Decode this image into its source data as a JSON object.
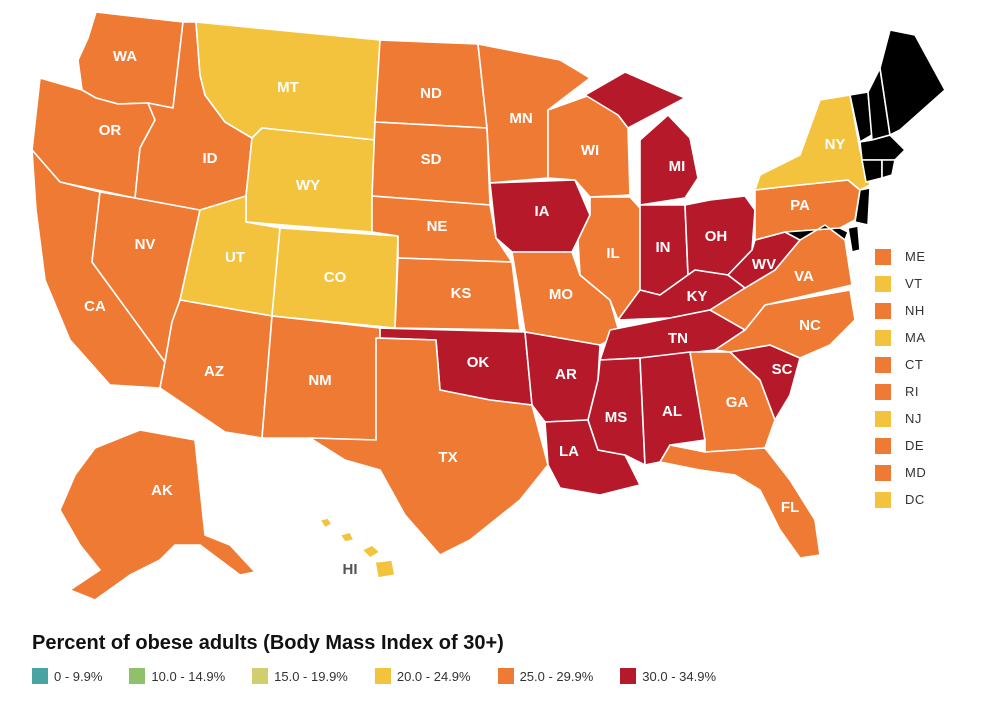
{
  "colors": {
    "bin_0": "#4aa3a3",
    "bin_10": "#8fc16b",
    "bin_15": "#cfcf6e",
    "bin_20": "#f3c33d",
    "bin_25": "#ee7a33",
    "bin_30": "#b5192a",
    "border": "#ffffff"
  },
  "legend": {
    "title": "Percent of obese adults (Body Mass Index of 30+)",
    "bins": [
      {
        "label": "0 - 9.9%",
        "color": "#4aa3a3"
      },
      {
        "label": "10.0 - 14.9%",
        "color": "#8fc16b"
      },
      {
        "label": "15.0 - 19.9%",
        "color": "#cfcf6e"
      },
      {
        "label": "20.0 - 24.9%",
        "color": "#f3c33d"
      },
      {
        "label": "25.0 - 29.9%",
        "color": "#ee7a33"
      },
      {
        "label": "30.0 - 34.9%",
        "color": "#b5192a"
      }
    ]
  },
  "small_states": [
    {
      "label": "ME",
      "bin": "25.0 - 29.9%"
    },
    {
      "label": "VT",
      "bin": "20.0 - 24.9%"
    },
    {
      "label": "NH",
      "bin": "25.0 - 29.9%"
    },
    {
      "label": "MA",
      "bin": "20.0 - 24.9%"
    },
    {
      "label": "CT",
      "bin": "25.0 - 29.9%"
    },
    {
      "label": "RI",
      "bin": "25.0 - 29.9%"
    },
    {
      "label": "NJ",
      "bin": "20.0 - 24.9%"
    },
    {
      "label": "DE",
      "bin": "25.0 - 29.9%"
    },
    {
      "label": "MD",
      "bin": "25.0 - 29.9%"
    },
    {
      "label": "DC",
      "bin": "20.0 - 24.9%"
    }
  ],
  "states": {
    "WA": {
      "label": "WA",
      "bin": "25.0 - 29.9%"
    },
    "OR": {
      "label": "OR",
      "bin": "25.0 - 29.9%"
    },
    "CA": {
      "label": "CA",
      "bin": "25.0 - 29.9%"
    },
    "NV": {
      "label": "NV",
      "bin": "25.0 - 29.9%"
    },
    "ID": {
      "label": "ID",
      "bin": "25.0 - 29.9%"
    },
    "MT": {
      "label": "MT",
      "bin": "20.0 - 24.9%"
    },
    "WY": {
      "label": "WY",
      "bin": "20.0 - 24.9%"
    },
    "UT": {
      "label": "UT",
      "bin": "20.0 - 24.9%"
    },
    "CO": {
      "label": "CO",
      "bin": "20.0 - 24.9%"
    },
    "AZ": {
      "label": "AZ",
      "bin": "25.0 - 29.9%"
    },
    "NM": {
      "label": "NM",
      "bin": "25.0 - 29.9%"
    },
    "ND": {
      "label": "ND",
      "bin": "25.0 - 29.9%"
    },
    "SD": {
      "label": "SD",
      "bin": "25.0 - 29.9%"
    },
    "NE": {
      "label": "NE",
      "bin": "25.0 - 29.9%"
    },
    "KS": {
      "label": "KS",
      "bin": "25.0 - 29.9%"
    },
    "OK": {
      "label": "OK",
      "bin": "30.0 - 34.9%"
    },
    "TX": {
      "label": "TX",
      "bin": "25.0 - 29.9%"
    },
    "MN": {
      "label": "MN",
      "bin": "25.0 - 29.9%"
    },
    "IA": {
      "label": "IA",
      "bin": "30.0 - 34.9%"
    },
    "MO": {
      "label": "MO",
      "bin": "25.0 - 29.9%"
    },
    "AR": {
      "label": "AR",
      "bin": "30.0 - 34.9%"
    },
    "LA": {
      "label": "LA",
      "bin": "30.0 - 34.9%"
    },
    "WI": {
      "label": "WI",
      "bin": "25.0 - 29.9%"
    },
    "IL": {
      "label": "IL",
      "bin": "25.0 - 29.9%"
    },
    "MI": {
      "label": "MI",
      "bin": "30.0 - 34.9%"
    },
    "IN": {
      "label": "IN",
      "bin": "30.0 - 34.9%"
    },
    "OH": {
      "label": "OH",
      "bin": "30.0 - 34.9%"
    },
    "KY": {
      "label": "KY",
      "bin": "30.0 - 34.9%"
    },
    "TN": {
      "label": "TN",
      "bin": "30.0 - 34.9%"
    },
    "MS": {
      "label": "MS",
      "bin": "30.0 - 34.9%"
    },
    "AL": {
      "label": "AL",
      "bin": "30.0 - 34.9%"
    },
    "GA": {
      "label": "GA",
      "bin": "25.0 - 29.9%"
    },
    "FL": {
      "label": "FL",
      "bin": "25.0 - 29.9%"
    },
    "SC": {
      "label": "SC",
      "bin": "30.0 - 34.9%"
    },
    "NC": {
      "label": "NC",
      "bin": "25.0 - 29.9%"
    },
    "VA": {
      "label": "VA",
      "bin": "25.0 - 29.9%"
    },
    "WV": {
      "label": "WV",
      "bin": "30.0 - 34.9%"
    },
    "PA": {
      "label": "PA",
      "bin": "25.0 - 29.9%"
    },
    "NY": {
      "label": "NY",
      "bin": "20.0 - 24.9%"
    },
    "AK": {
      "label": "AK",
      "bin": "25.0 - 29.9%"
    },
    "HI": {
      "label": "HI",
      "bin": "20.0 - 24.9%"
    }
  }
}
